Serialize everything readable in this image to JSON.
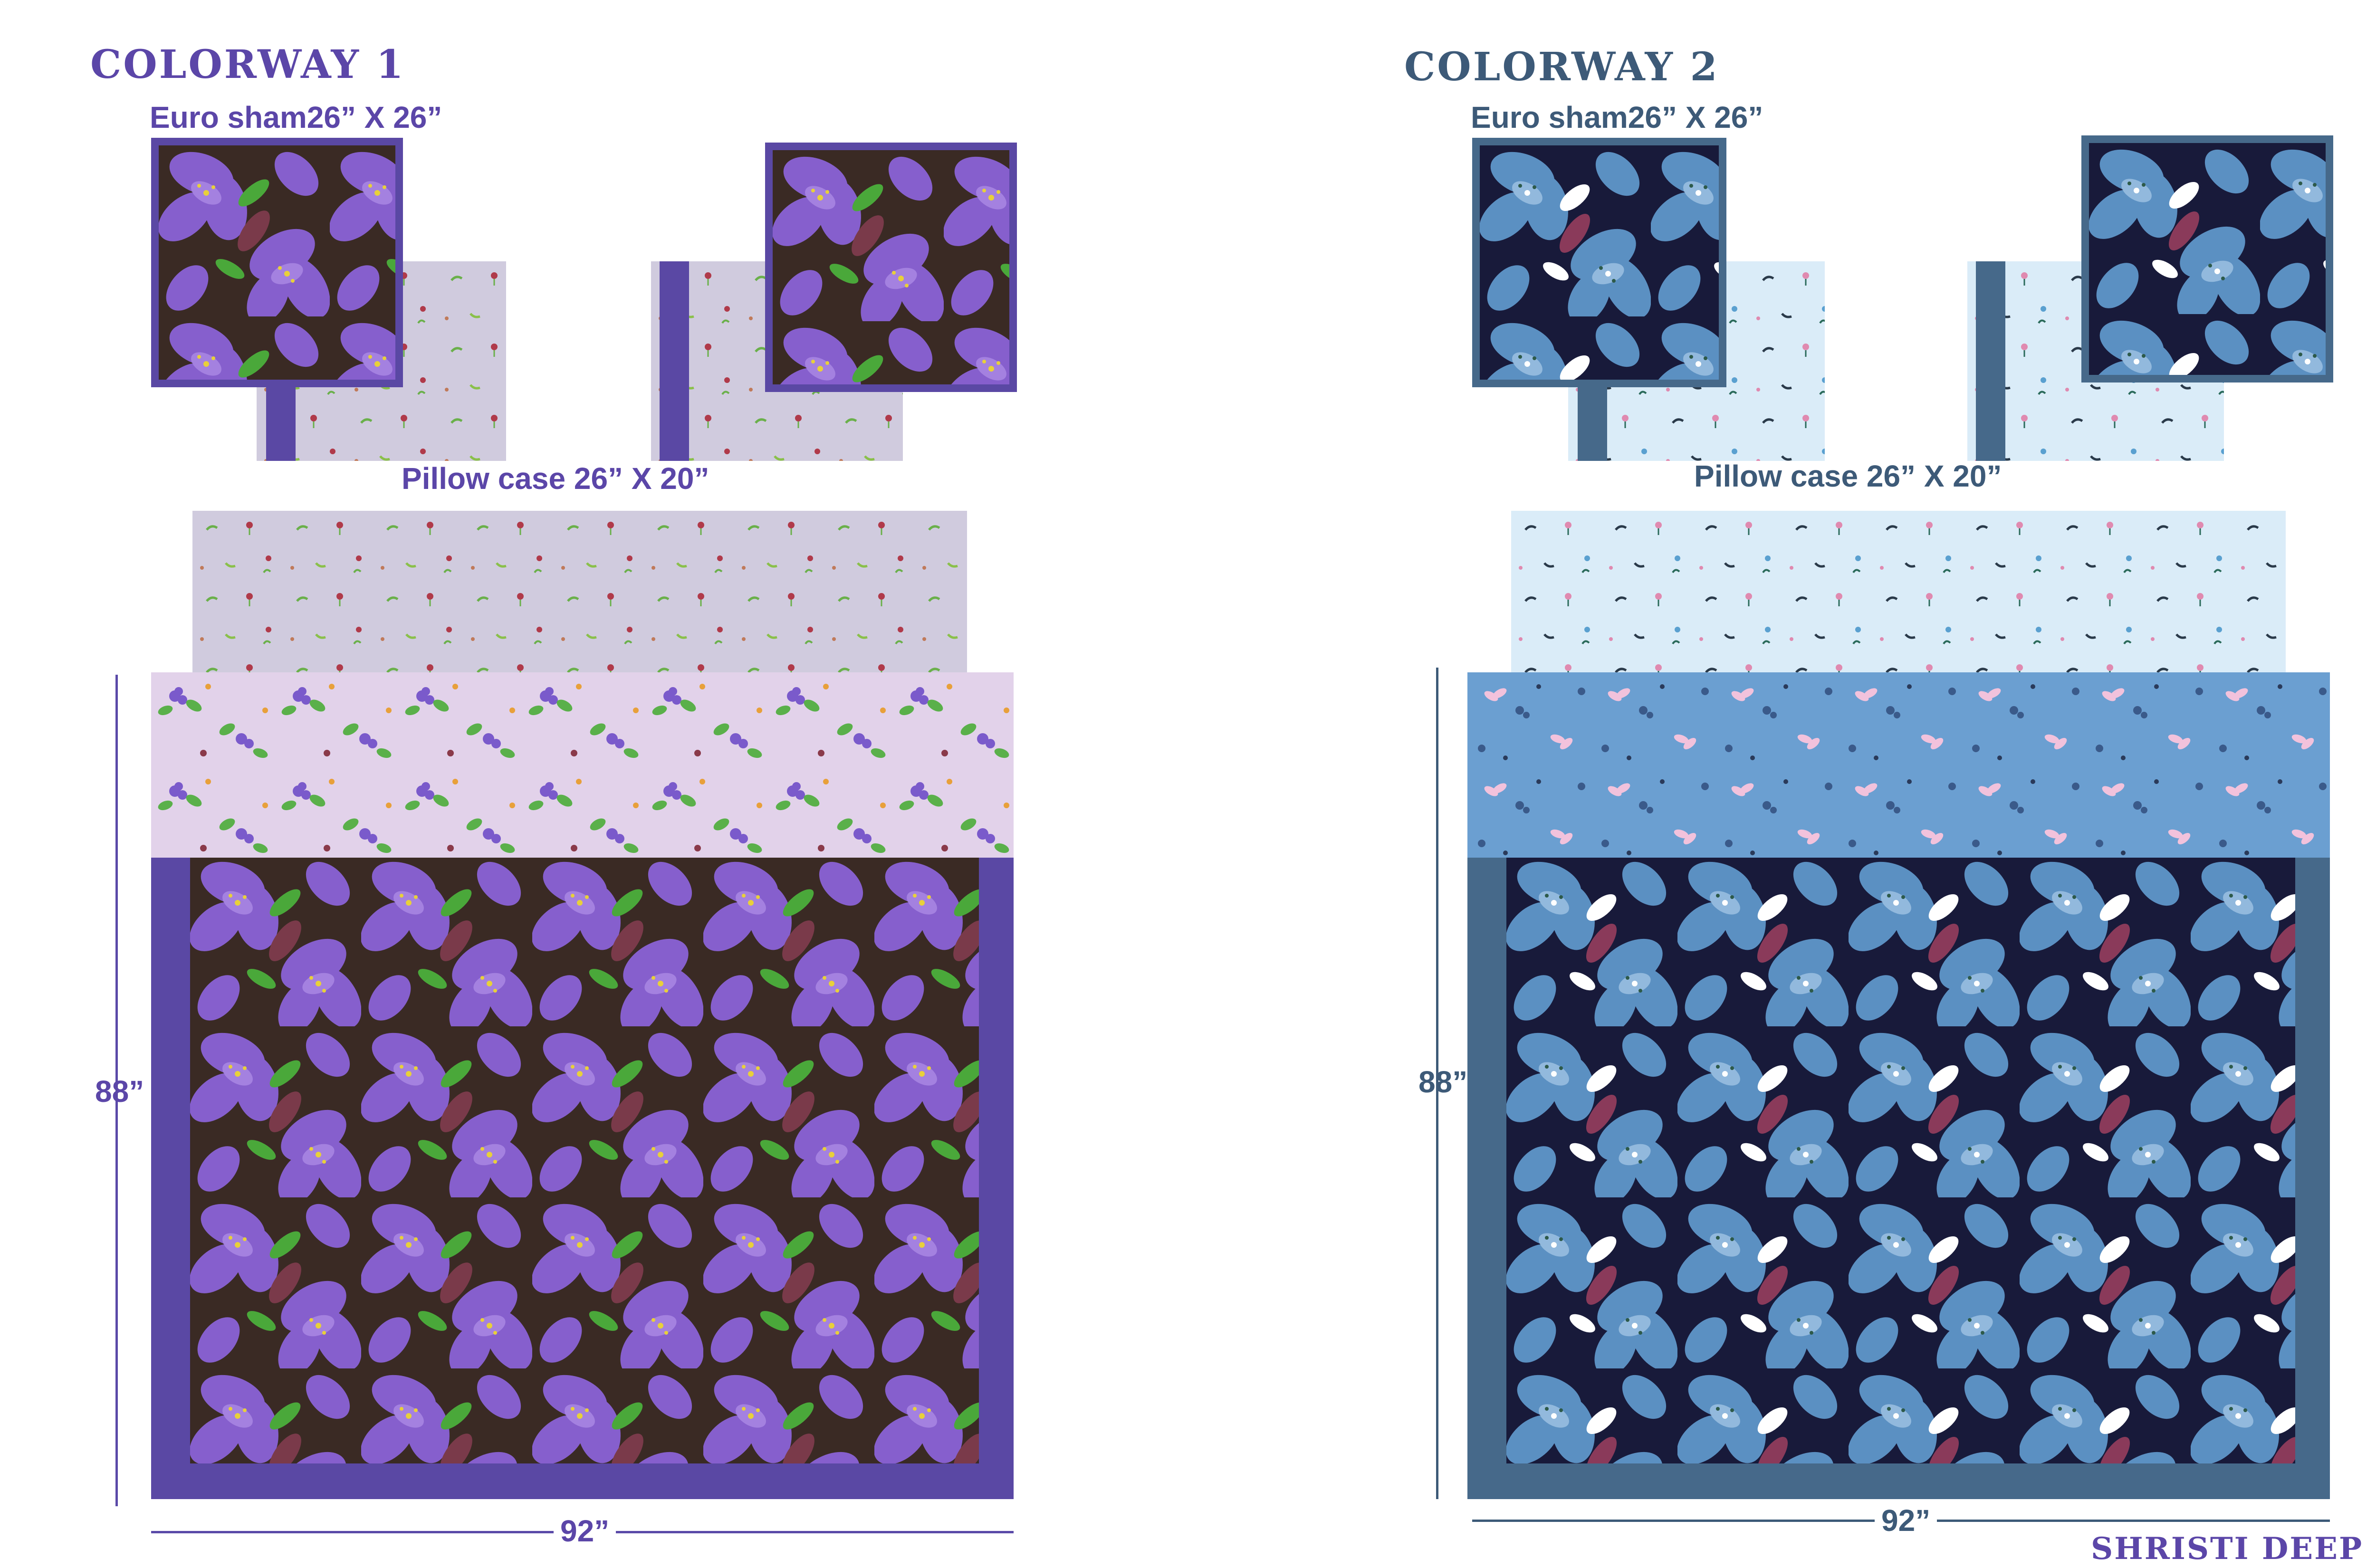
{
  "colorway1": {
    "title": "COLORWAY 1",
    "euro_label": "Euro sham26” X 26”",
    "pillow_label": "Pillow case 26” X 20”",
    "height_label": "88”",
    "width_label": "92”",
    "colors": {
      "text": "#5b46a8",
      "border": "#5a48a4",
      "bigfloral_bg": "#3a2a24",
      "petal": "#8a62d6",
      "leaf": "#4aa83a",
      "pillow_bg": "#d0cbde",
      "duvet_band_bg": "#e2d2ea"
    }
  },
  "colorway2": {
    "title": "COLORWAY 2",
    "euro_label": "Euro sham26” X 26”",
    "pillow_label": "Pillow case 26” X 20”",
    "height_label": "88”",
    "width_label": "92”",
    "colors": {
      "text": "#3d5a78",
      "border": "#46698a",
      "bigfloral_bg": "#181a3a",
      "petal": "#5f97c9",
      "leaf": "#5a8a6a",
      "pillow_bg": "#daecf8",
      "duvet_band_bg": "#6b9fd1"
    }
  },
  "signature": "SHRISTI DEEP"
}
